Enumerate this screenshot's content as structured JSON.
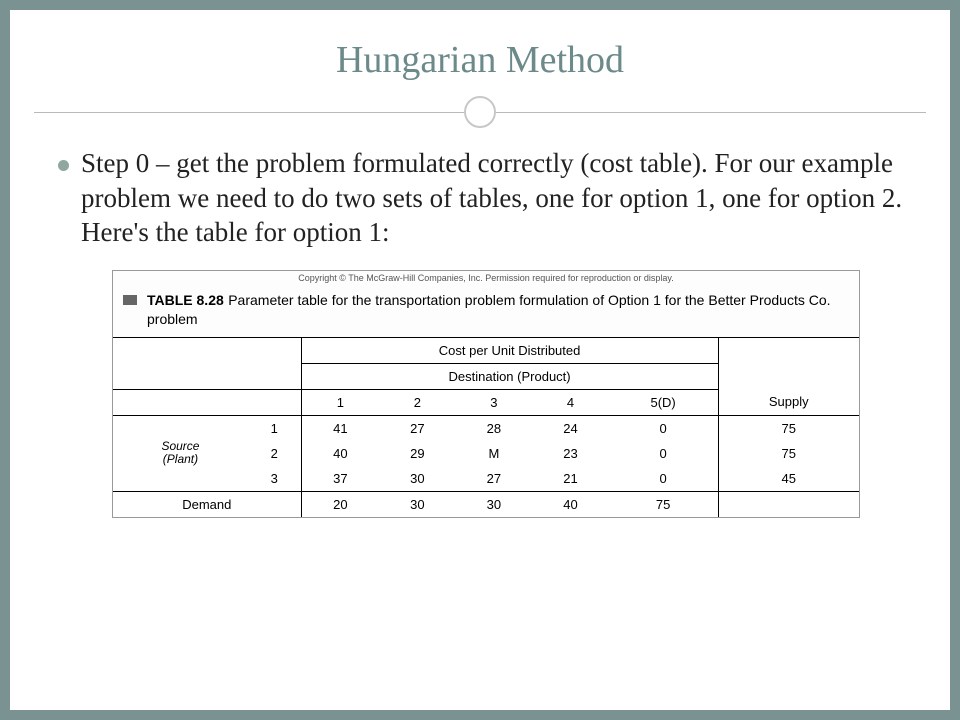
{
  "title": "Hungarian Method",
  "bullet": "Step 0 – get the problem formulated correctly (cost table). For our example problem we need to do two sets of tables, one for option 1, one for option 2. Here's the table for option 1:",
  "copyright": "Copyright © The McGraw-Hill Companies, Inc. Permission required for reproduction or display.",
  "table_label": "TABLE 8.28",
  "caption": "Parameter table for the transportation problem formulation of Option 1 for the Better Products Co. problem",
  "headers": {
    "cost": "Cost per Unit Distributed",
    "dest": "Destination (Product)",
    "cols": [
      "1",
      "2",
      "3",
      "4",
      "5(D)"
    ],
    "supply": "Supply",
    "source": "Source",
    "plant": "(Plant)",
    "demand": "Demand"
  },
  "rows": [
    {
      "label": "1",
      "vals": [
        "41",
        "27",
        "28",
        "24",
        "0"
      ],
      "supply": "75"
    },
    {
      "label": "2",
      "vals": [
        "40",
        "29",
        "M",
        "23",
        "0"
      ],
      "supply": "75"
    },
    {
      "label": "3",
      "vals": [
        "37",
        "30",
        "27",
        "21",
        "0"
      ],
      "supply": "45"
    }
  ],
  "demand": [
    "20",
    "30",
    "30",
    "40",
    "75"
  ],
  "colors": {
    "slide_bg": "#7a9392",
    "title": "#6b8a89",
    "bullet_dot": "#8fa7a0"
  }
}
